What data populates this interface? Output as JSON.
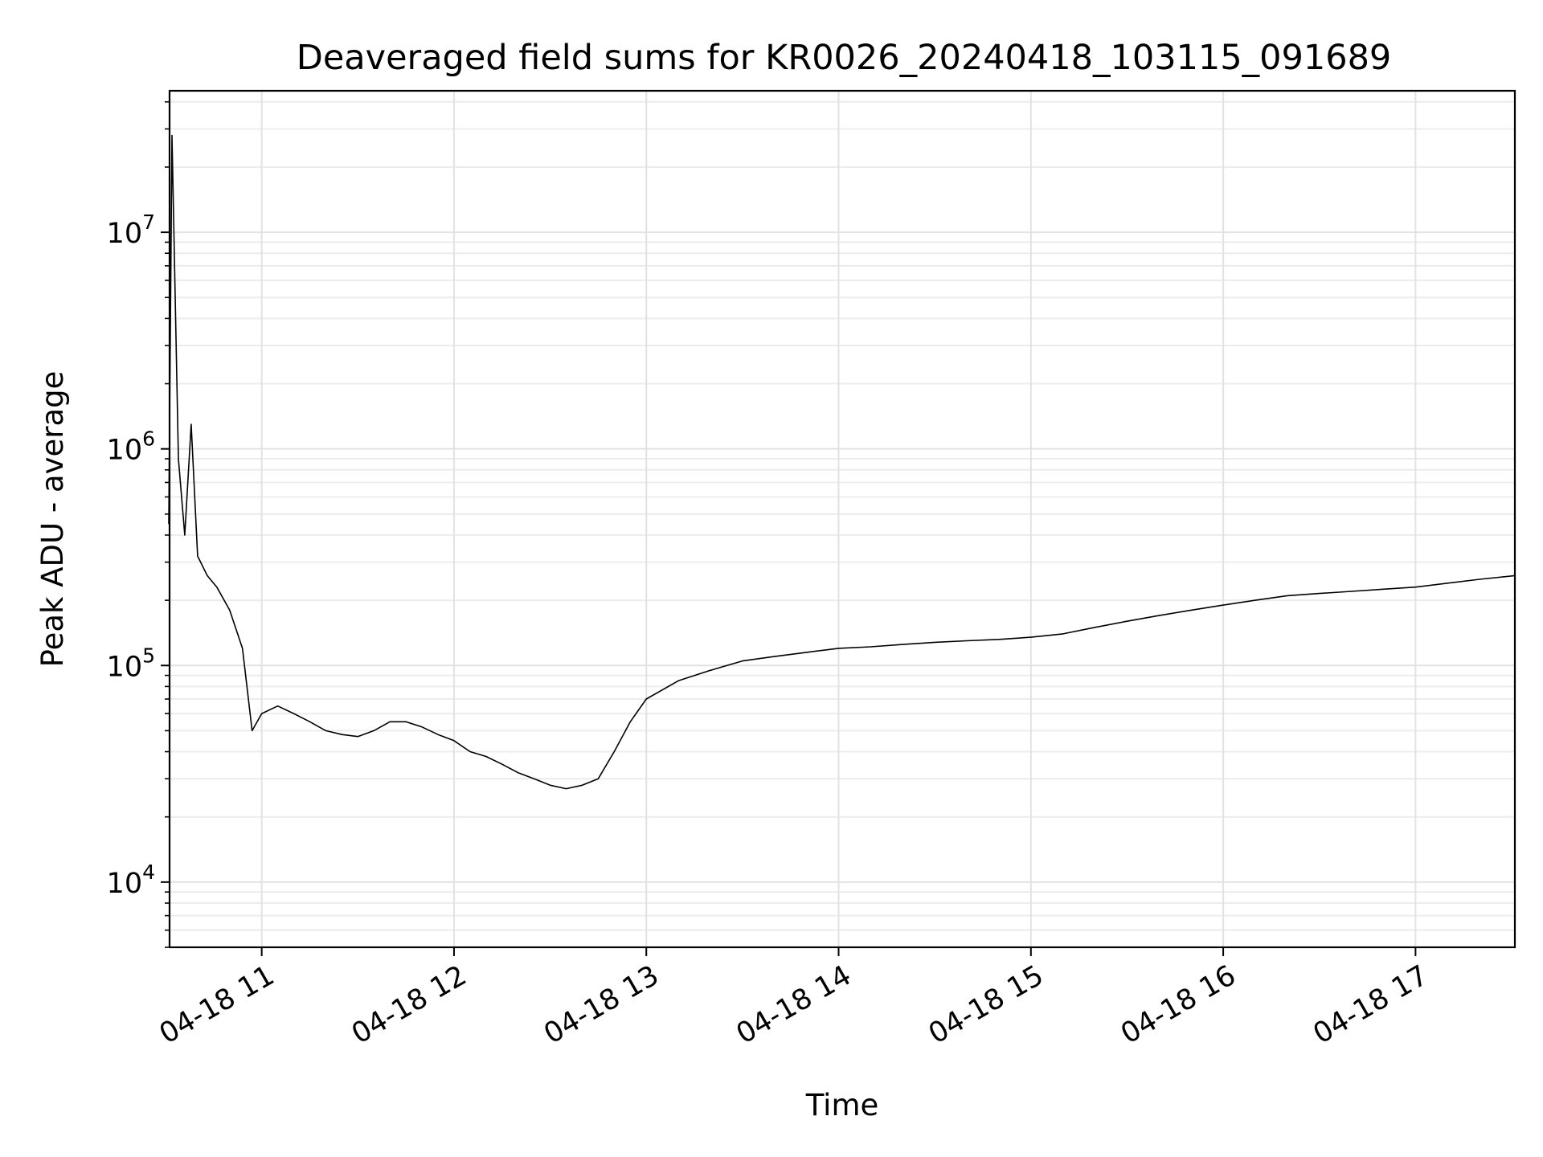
{
  "chart_data": {
    "type": "line",
    "title": "Deaveraged field sums for KR0026_20240418_103115_091689",
    "xlabel": "Time",
    "ylabel": "Peak ADU - average",
    "yscale": "log",
    "ylim": [
      5000,
      45000000
    ],
    "xlim": [
      "2024-04-18 10:31:15",
      "2024-04-18 17:31:00"
    ],
    "grid": true,
    "line_color": "#000000",
    "x_ticks": [
      {
        "x": "2024-04-18 11:00",
        "label": "04-18 11"
      },
      {
        "x": "2024-04-18 12:00",
        "label": "04-18 12"
      },
      {
        "x": "2024-04-18 13:00",
        "label": "04-18 13"
      },
      {
        "x": "2024-04-18 14:00",
        "label": "04-18 14"
      },
      {
        "x": "2024-04-18 15:00",
        "label": "04-18 15"
      },
      {
        "x": "2024-04-18 16:00",
        "label": "04-18 16"
      },
      {
        "x": "2024-04-18 17:00",
        "label": "04-18 17"
      }
    ],
    "y_ticks": [
      {
        "value": 10000,
        "base": "10",
        "exp": "4"
      },
      {
        "value": 100000,
        "base": "10",
        "exp": "5"
      },
      {
        "value": 1000000,
        "base": "10",
        "exp": "6"
      },
      {
        "value": 10000000,
        "base": "10",
        "exp": "7"
      }
    ],
    "series": [
      {
        "x": [
          "2024-04-18 10:31",
          "2024-04-18 10:32",
          "2024-04-18 10:34",
          "2024-04-18 10:36",
          "2024-04-18 10:38",
          "2024-04-18 10:40",
          "2024-04-18 10:43",
          "2024-04-18 10:46",
          "2024-04-18 10:50",
          "2024-04-18 10:54",
          "2024-04-18 10:57",
          "2024-04-18 11:00",
          "2024-04-18 11:05",
          "2024-04-18 11:10",
          "2024-04-18 11:15",
          "2024-04-18 11:20",
          "2024-04-18 11:25",
          "2024-04-18 11:30",
          "2024-04-18 11:35",
          "2024-04-18 11:40",
          "2024-04-18 11:45",
          "2024-04-18 11:50",
          "2024-04-18 11:55",
          "2024-04-18 12:00",
          "2024-04-18 12:05",
          "2024-04-18 12:10",
          "2024-04-18 12:15",
          "2024-04-18 12:20",
          "2024-04-18 12:25",
          "2024-04-18 12:30",
          "2024-04-18 12:35",
          "2024-04-18 12:40",
          "2024-04-18 12:45",
          "2024-04-18 12:50",
          "2024-04-18 12:55",
          "2024-04-18 13:00",
          "2024-04-18 13:10",
          "2024-04-18 13:20",
          "2024-04-18 13:30",
          "2024-04-18 13:40",
          "2024-04-18 13:50",
          "2024-04-18 14:00",
          "2024-04-18 14:10",
          "2024-04-18 14:20",
          "2024-04-18 14:30",
          "2024-04-18 14:40",
          "2024-04-18 14:50",
          "2024-04-18 15:00",
          "2024-04-18 15:10",
          "2024-04-18 15:20",
          "2024-04-18 15:30",
          "2024-04-18 15:40",
          "2024-04-18 15:50",
          "2024-04-18 16:00",
          "2024-04-18 16:10",
          "2024-04-18 16:20",
          "2024-04-18 16:30",
          "2024-04-18 16:40",
          "2024-04-18 16:50",
          "2024-04-18 17:00",
          "2024-04-18 17:10",
          "2024-04-18 17:20",
          "2024-04-18 17:31"
        ],
        "y": [
          450000,
          28000000,
          900000,
          400000,
          1300000,
          320000,
          260000,
          230000,
          180000,
          120000,
          50000,
          60000,
          65000,
          60000,
          55000,
          50000,
          48000,
          47000,
          50000,
          55000,
          55000,
          52000,
          48000,
          45000,
          40000,
          38000,
          35000,
          32000,
          30000,
          28000,
          27000,
          28000,
          30000,
          40000,
          55000,
          70000,
          85000,
          95000,
          105000,
          110000,
          115000,
          120000,
          122000,
          125000,
          128000,
          130000,
          132000,
          135000,
          140000,
          150000,
          160000,
          170000,
          180000,
          190000,
          200000,
          210000,
          215000,
          220000,
          225000,
          230000,
          240000,
          250000,
          260000
        ]
      }
    ]
  }
}
